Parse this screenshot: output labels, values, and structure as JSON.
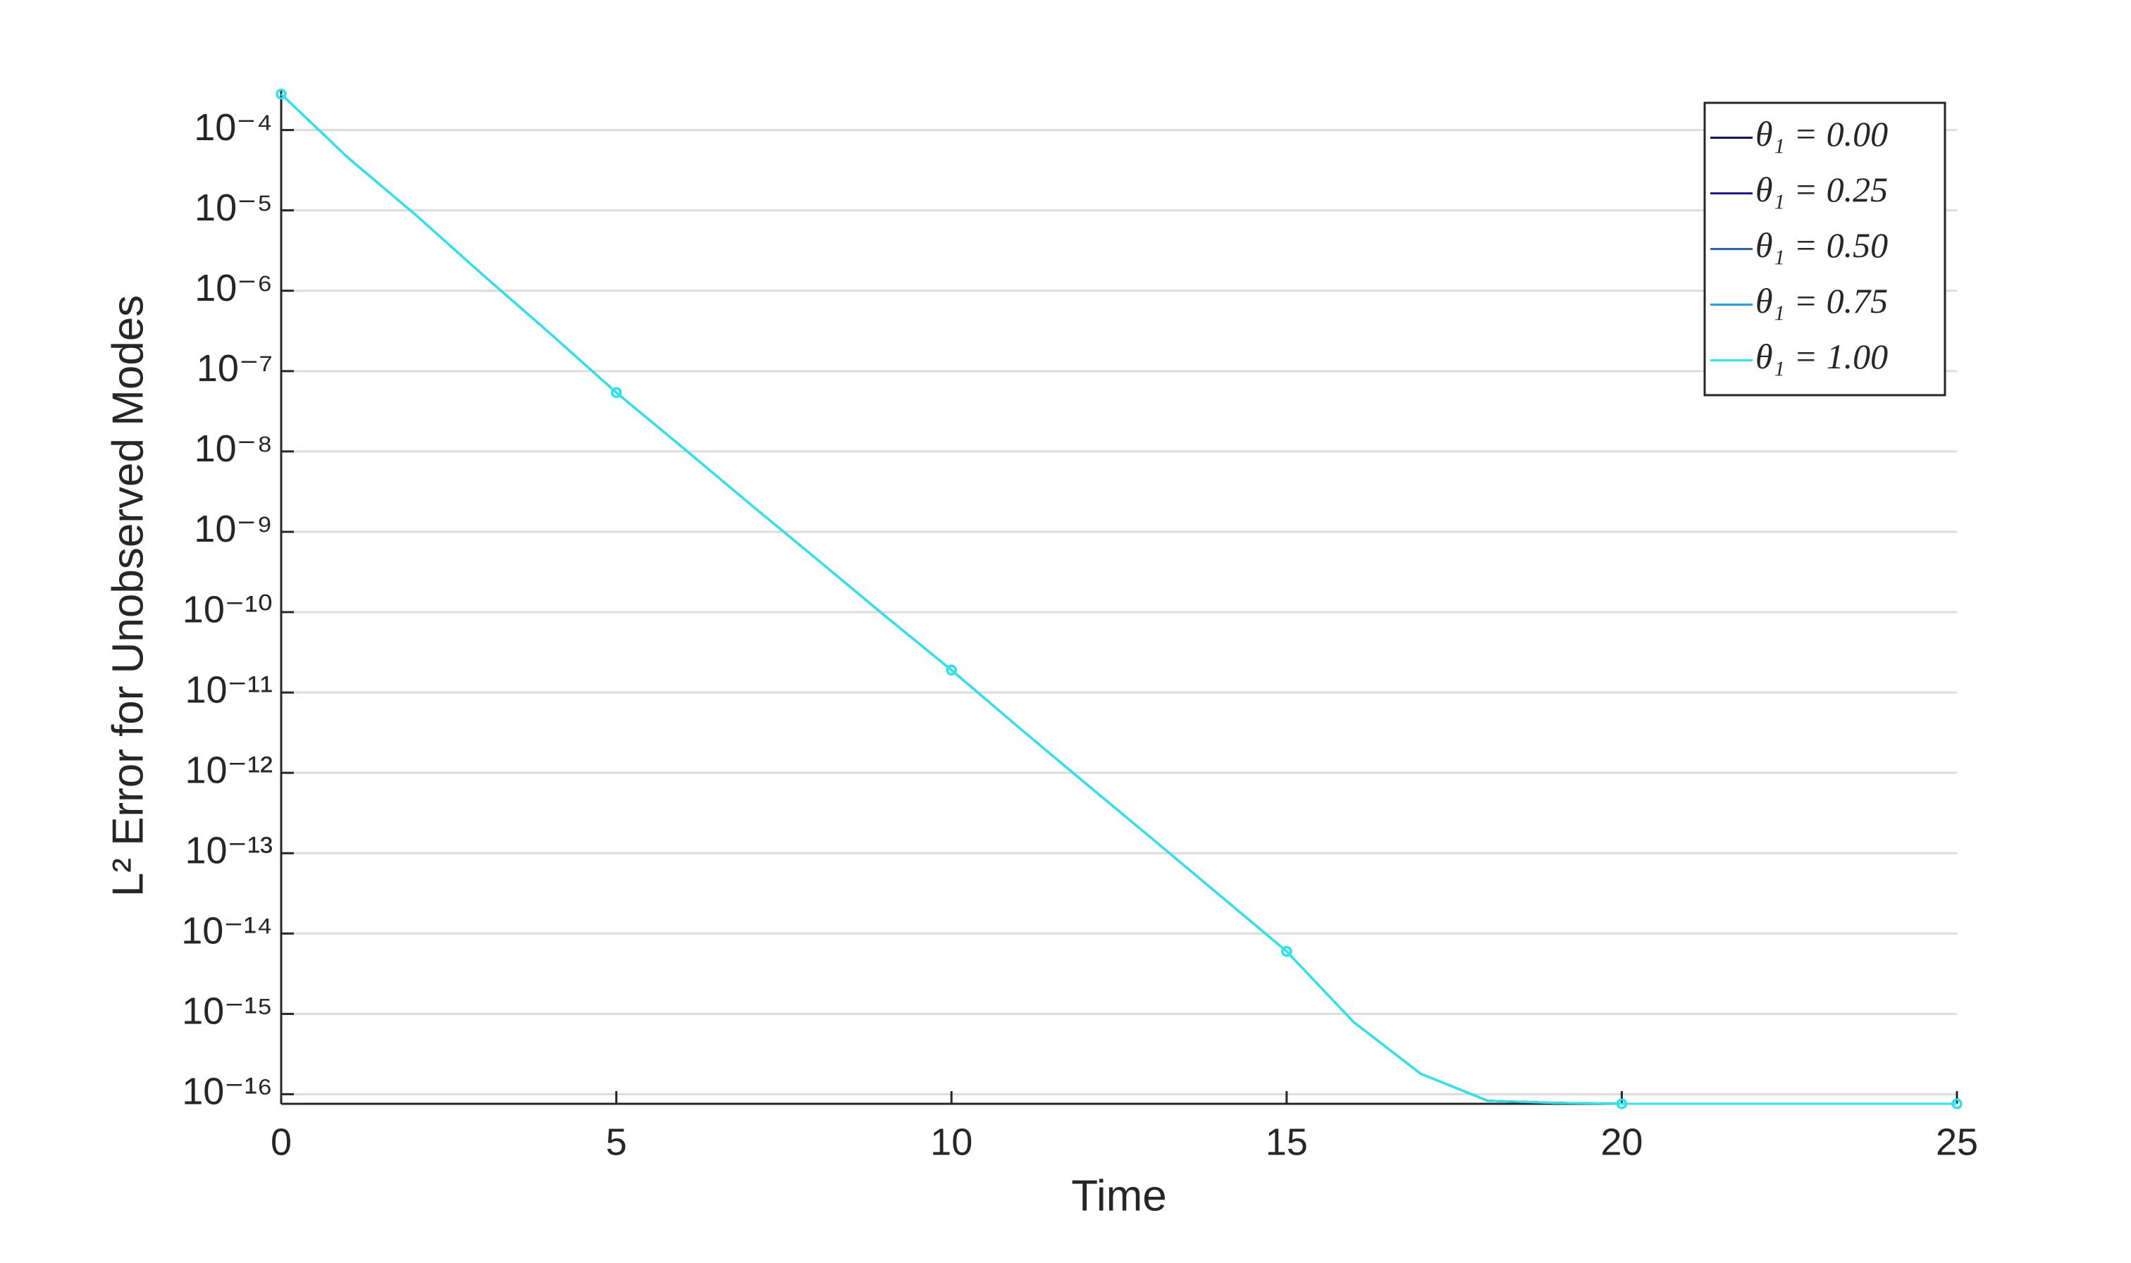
{
  "chart_data": {
    "type": "line",
    "xlabel": "Time",
    "ylabel": "L² Error for Unobserved Modes",
    "x": [
      0,
      1,
      2,
      3,
      4,
      5,
      6,
      7,
      8,
      9,
      10,
      11,
      12,
      13,
      14,
      15,
      16,
      17,
      18,
      19,
      20,
      21,
      22,
      23,
      24,
      25
    ],
    "series": [
      {
        "name": "θ₁ = 0.00",
        "color": "#0a0a7a",
        "values": [
          0.00028,
          4.5e-05,
          8.9e-06,
          1.6e-06,
          3e-07,
          5.4e-08,
          1.1e-08,
          2.2e-09,
          4.5e-10,
          9.1e-11,
          1.9e-11,
          3.7e-12,
          7.4e-13,
          1.5e-13,
          3e-14,
          6e-15,
          7.9e-16,
          1.8e-16,
          8.3e-17,
          7.8e-17,
          7.6e-17,
          7.6e-17,
          7.6e-17,
          7.6e-17,
          7.6e-17,
          7.6e-17
        ]
      },
      {
        "name": "θ₁ = 0.25",
        "color": "#1c1ca8",
        "values": [
          0.00028,
          4.5e-05,
          8.9e-06,
          1.6e-06,
          3e-07,
          5.4e-08,
          1.1e-08,
          2.2e-09,
          4.5e-10,
          9.1e-11,
          1.9e-11,
          3.7e-12,
          7.4e-13,
          1.5e-13,
          3e-14,
          6e-15,
          7.9e-16,
          1.8e-16,
          8.3e-17,
          7.8e-17,
          7.6e-17,
          7.6e-17,
          7.6e-17,
          7.6e-17,
          7.6e-17,
          7.6e-17
        ]
      },
      {
        "name": "θ₁ = 0.50",
        "color": "#2a62c0",
        "values": [
          0.00028,
          4.5e-05,
          8.9e-06,
          1.6e-06,
          3e-07,
          5.4e-08,
          1.1e-08,
          2.2e-09,
          4.5e-10,
          9.1e-11,
          1.9e-11,
          3.7e-12,
          7.4e-13,
          1.5e-13,
          3e-14,
          6e-15,
          7.9e-16,
          1.8e-16,
          8.3e-17,
          7.8e-17,
          7.6e-17,
          7.6e-17,
          7.6e-17,
          7.6e-17,
          7.6e-17,
          7.6e-17
        ]
      },
      {
        "name": "θ₁ = 0.75",
        "color": "#22a2e6",
        "values": [
          0.00028,
          4.5e-05,
          8.9e-06,
          1.6e-06,
          3e-07,
          5.4e-08,
          1.1e-08,
          2.2e-09,
          4.5e-10,
          9.1e-11,
          1.9e-11,
          3.7e-12,
          7.4e-13,
          1.5e-13,
          3e-14,
          6e-15,
          7.9e-16,
          1.8e-16,
          8.3e-17,
          7.8e-17,
          7.6e-17,
          7.6e-17,
          7.6e-17,
          7.6e-17,
          7.6e-17,
          7.6e-17
        ]
      },
      {
        "name": "θ₁ = 1.00",
        "color": "#26e8ee",
        "values": [
          0.00028,
          4.5e-05,
          8.9e-06,
          1.6e-06,
          3e-07,
          5.4e-08,
          1.1e-08,
          2.2e-09,
          4.5e-10,
          9.1e-11,
          1.9e-11,
          3.7e-12,
          7.4e-13,
          1.5e-13,
          3e-14,
          6e-15,
          7.9e-16,
          1.8e-16,
          8.3e-17,
          7.8e-17,
          7.6e-17,
          7.6e-17,
          7.6e-17,
          7.6e-17,
          7.6e-17,
          7.6e-17
        ]
      }
    ],
    "xlim": [
      0,
      25
    ],
    "xticks": [
      0,
      5,
      10,
      15,
      20,
      25
    ],
    "ylim": [
      7.6e-17,
      0.00032
    ],
    "log_y": true,
    "yticks": [
      {
        "value": 1e-16,
        "label": "10⁻¹⁶"
      },
      {
        "value": 1e-15,
        "label": "10⁻¹⁵"
      },
      {
        "value": 1e-14,
        "label": "10⁻¹⁴"
      },
      {
        "value": 1e-13,
        "label": "10⁻¹³"
      },
      {
        "value": 1e-12,
        "label": "10⁻¹²"
      },
      {
        "value": 1e-11,
        "label": "10⁻¹¹"
      },
      {
        "value": 1e-10,
        "label": "10⁻¹⁰"
      },
      {
        "value": 1e-09,
        "label": "10⁻⁹"
      },
      {
        "value": 1e-08,
        "label": "10⁻⁸"
      },
      {
        "value": 1e-07,
        "label": "10⁻⁷"
      },
      {
        "value": 1e-06,
        "label": "10⁻⁶"
      },
      {
        "value": 1e-05,
        "label": "10⁻⁵"
      },
      {
        "value": 0.0001,
        "label": "10⁻⁴"
      }
    ],
    "grid": true,
    "legend": "top-right"
  }
}
